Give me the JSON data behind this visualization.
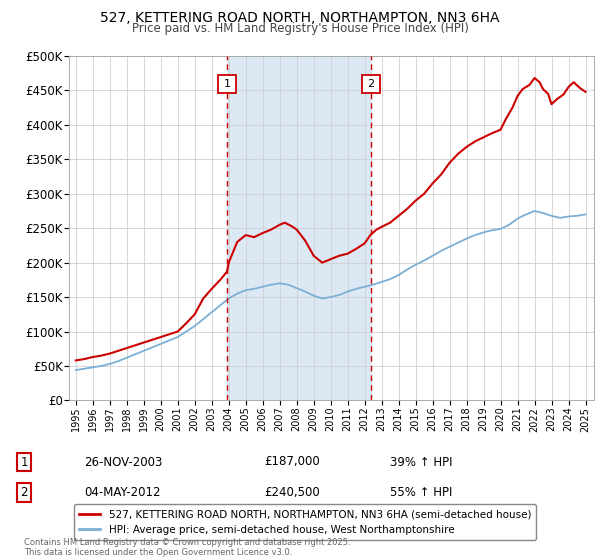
{
  "title": "527, KETTERING ROAD NORTH, NORTHAMPTON, NN3 6HA",
  "subtitle": "Price paid vs. HM Land Registry's House Price Index (HPI)",
  "ylim": [
    0,
    500000
  ],
  "yticks": [
    0,
    50000,
    100000,
    150000,
    200000,
    250000,
    300000,
    350000,
    400000,
    450000,
    500000
  ],
  "ytick_labels": [
    "£0",
    "£50K",
    "£100K",
    "£150K",
    "£200K",
    "£250K",
    "£300K",
    "£350K",
    "£400K",
    "£450K",
    "£500K"
  ],
  "xlim_start": 1994.6,
  "xlim_end": 2025.5,
  "sale1_x": 2003.9,
  "sale1_y": 187000,
  "sale2_x": 2012.35,
  "sale2_y": 240500,
  "marker1_y": 460000,
  "marker2_y": 460000,
  "sale1_label": "26-NOV-2003",
  "sale1_price": "£187,000",
  "sale1_hpi": "39% ↑ HPI",
  "sale2_label": "04-MAY-2012",
  "sale2_price": "£240,500",
  "sale2_hpi": "55% ↑ HPI",
  "red_line_color": "#cc0000",
  "blue_line_color": "#7bafd4",
  "shade_color": "#dce9f5",
  "vline_color": "#cc0000",
  "background_color": "#ffffff",
  "grid_color": "#d0d0d0",
  "legend1": "527, KETTERING ROAD NORTH, NORTHAMPTON, NN3 6HA (semi-detached house)",
  "legend2": "HPI: Average price, semi-detached house, West Northamptonshire",
  "footnote": "Contains HM Land Registry data © Crown copyright and database right 2025.\nThis data is licensed under the Open Government Licence v3.0.",
  "red_years": [
    1995.0,
    1995.5,
    1996.0,
    1996.5,
    1997.0,
    1997.5,
    1998.0,
    1998.5,
    1999.0,
    1999.5,
    2000.0,
    2000.5,
    2001.0,
    2001.5,
    2002.0,
    2002.5,
    2003.0,
    2003.5,
    2003.9,
    2004.0,
    2004.5,
    2005.0,
    2005.5,
    2006.0,
    2006.5,
    2007.0,
    2007.3,
    2007.7,
    2008.0,
    2008.5,
    2009.0,
    2009.5,
    2010.0,
    2010.5,
    2011.0,
    2011.5,
    2012.0,
    2012.35,
    2012.7,
    2013.0,
    2013.5,
    2014.0,
    2014.5,
    2015.0,
    2015.5,
    2016.0,
    2016.5,
    2017.0,
    2017.5,
    2018.0,
    2018.5,
    2019.0,
    2019.5,
    2020.0,
    2020.3,
    2020.7,
    2021.0,
    2021.3,
    2021.7,
    2022.0,
    2022.3,
    2022.5,
    2022.8,
    2023.0,
    2023.3,
    2023.7,
    2024.0,
    2024.3,
    2024.7,
    2025.0
  ],
  "red_values": [
    58000,
    60000,
    63000,
    65000,
    68000,
    72000,
    76000,
    80000,
    84000,
    88000,
    92000,
    96000,
    100000,
    112000,
    125000,
    148000,
    162000,
    175000,
    187000,
    200000,
    230000,
    240000,
    237000,
    243000,
    248000,
    255000,
    258000,
    253000,
    248000,
    232000,
    210000,
    200000,
    205000,
    210000,
    213000,
    220000,
    228000,
    240500,
    248000,
    252000,
    258000,
    268000,
    278000,
    290000,
    300000,
    315000,
    328000,
    345000,
    358000,
    368000,
    376000,
    382000,
    388000,
    393000,
    408000,
    425000,
    442000,
    452000,
    458000,
    468000,
    462000,
    452000,
    445000,
    430000,
    437000,
    444000,
    455000,
    462000,
    453000,
    448000
  ],
  "blue_years": [
    1995.0,
    1995.5,
    1996.0,
    1996.5,
    1997.0,
    1997.5,
    1998.0,
    1998.5,
    1999.0,
    1999.5,
    2000.0,
    2000.5,
    2001.0,
    2001.5,
    2002.0,
    2002.5,
    2003.0,
    2003.5,
    2004.0,
    2004.5,
    2005.0,
    2005.5,
    2006.0,
    2006.5,
    2007.0,
    2007.5,
    2008.0,
    2008.5,
    2009.0,
    2009.5,
    2010.0,
    2010.5,
    2011.0,
    2011.5,
    2012.0,
    2012.5,
    2013.0,
    2013.5,
    2014.0,
    2014.5,
    2015.0,
    2015.5,
    2016.0,
    2016.5,
    2017.0,
    2017.5,
    2018.0,
    2018.5,
    2019.0,
    2019.5,
    2020.0,
    2020.5,
    2021.0,
    2021.5,
    2022.0,
    2022.5,
    2023.0,
    2023.5,
    2024.0,
    2024.5,
    2025.0
  ],
  "blue_values": [
    44000,
    46000,
    48000,
    50000,
    53000,
    57000,
    62000,
    67000,
    72000,
    77000,
    82000,
    87000,
    92000,
    100000,
    108000,
    118000,
    128000,
    138000,
    148000,
    155000,
    160000,
    162000,
    165000,
    168000,
    170000,
    168000,
    163000,
    158000,
    152000,
    148000,
    150000,
    153000,
    158000,
    162000,
    165000,
    168000,
    172000,
    176000,
    182000,
    190000,
    197000,
    203000,
    210000,
    217000,
    223000,
    229000,
    235000,
    240000,
    244000,
    247000,
    249000,
    255000,
    264000,
    270000,
    275000,
    272000,
    268000,
    265000,
    267000,
    268000,
    270000
  ]
}
